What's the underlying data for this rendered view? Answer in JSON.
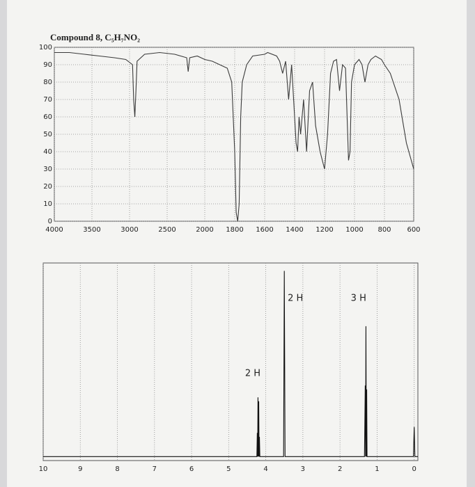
{
  "chart_data": [
    {
      "type": "line",
      "title": "Compound 8, C₅H₇NO₂",
      "x": [
        4000,
        3800,
        3600,
        3400,
        3200,
        3050,
        2960,
        2945,
        2930,
        2915,
        2900,
        2800,
        2600,
        2400,
        2240,
        2220,
        2200,
        2100,
        2000,
        1950,
        1900,
        1850,
        1820,
        1800,
        1790,
        1780,
        1770,
        1760,
        1750,
        1720,
        1680,
        1600,
        1580,
        1520,
        1500,
        1480,
        1460,
        1440,
        1420,
        1400,
        1390,
        1380,
        1370,
        1360,
        1340,
        1320,
        1300,
        1280,
        1260,
        1230,
        1200,
        1180,
        1160,
        1140,
        1120,
        1100,
        1080,
        1060,
        1040,
        1030,
        1020,
        1000,
        970,
        950,
        930,
        910,
        890,
        860,
        820,
        800,
        760,
        700,
        650,
        600
      ],
      "series": [
        {
          "color": "#3a3a3a",
          "values": [
            97,
            97,
            96,
            95,
            94,
            93,
            90,
            70,
            60,
            75,
            92,
            96,
            97,
            96,
            94,
            86,
            94,
            95,
            93,
            92,
            90,
            88,
            80,
            40,
            5,
            0,
            10,
            60,
            80,
            90,
            95,
            96,
            97,
            95,
            92,
            85,
            92,
            70,
            90,
            60,
            45,
            40,
            60,
            50,
            70,
            40,
            75,
            80,
            55,
            40,
            30,
            50,
            85,
            92,
            93,
            75,
            90,
            88,
            35,
            40,
            80,
            90,
            93,
            90,
            80,
            90,
            93,
            95,
            93,
            90,
            85,
            70,
            45,
            30
          ]
        }
      ],
      "xlim": [
        4000,
        600
      ],
      "xticks": [
        4000,
        3500,
        3000,
        2500,
        2000,
        1800,
        1600,
        1400,
        1200,
        1000,
        800,
        600
      ],
      "ylim": [
        0,
        100
      ],
      "yticks": [
        0,
        10,
        20,
        30,
        40,
        50,
        60,
        70,
        80,
        90,
        100
      ],
      "grid": true
    },
    {
      "type": "line",
      "x": [
        10,
        4.24,
        4.23,
        4.22,
        4.21,
        4.2,
        4.19,
        4.18,
        4.17,
        4.16,
        3.52,
        3.5,
        3.48,
        1.34,
        1.32,
        1.31,
        1.3,
        1.29,
        1.28,
        1.27,
        0.02,
        0,
        -0.02,
        -0.1
      ],
      "series": [
        {
          "color": "#111111",
          "values": [
            2,
            2,
            14,
            2,
            32,
            2,
            30,
            2,
            12,
            2,
            2,
            96,
            2,
            2,
            38,
            2,
            68,
            2,
            36,
            2,
            2,
            17,
            2,
            2
          ]
        }
      ],
      "xlim": [
        10,
        -0.1
      ],
      "xticks": [
        10,
        9,
        8,
        7,
        6,
        5,
        4,
        3,
        2,
        1,
        0
      ],
      "ylim": [
        0,
        100
      ],
      "grid": true,
      "annotations": [
        {
          "text": "2 H",
          "x": 4.35,
          "y": 44
        },
        {
          "text": "2 H",
          "x": 3.2,
          "y": 82
        },
        {
          "text": "3 H",
          "x": 1.5,
          "y": 82
        }
      ]
    }
  ]
}
